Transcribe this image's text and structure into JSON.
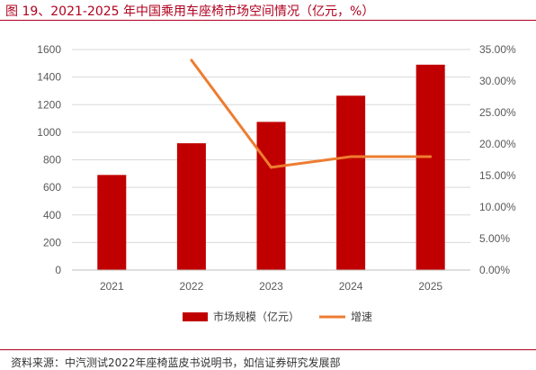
{
  "figure_title": "图 19、2021-2025 年中国乘用车座椅市场空间情况（亿元，%）",
  "source_text": "资料来源：中汽测试2022年座椅蓝皮书说明书，如信证券研究发展部",
  "colors": {
    "bar": "#c00000",
    "line": "#ed7d31",
    "title": "#b0001e"
  },
  "chart_data": {
    "type": "bar",
    "categories": [
      "2021",
      "2022",
      "2023",
      "2024",
      "2025"
    ],
    "series": [
      {
        "name": "市场规模（亿元）",
        "type": "bar",
        "axis": "left",
        "values": [
          690,
          920,
          1075,
          1265,
          1490
        ]
      },
      {
        "name": "增速",
        "type": "line",
        "axis": "right",
        "values": [
          null,
          33.3,
          16.3,
          18.0,
          18.0
        ]
      }
    ],
    "y_left": {
      "min": 0,
      "max": 1600,
      "ticks": [
        "0",
        "200",
        "400",
        "600",
        "800",
        "1000",
        "1200",
        "1400",
        "1600"
      ]
    },
    "y_right": {
      "min": 0,
      "max": 35,
      "ticks": [
        "0.00%",
        "5.00%",
        "10.00%",
        "15.00%",
        "20.00%",
        "25.00%",
        "30.00%",
        "35.00%"
      ]
    },
    "grid": true,
    "legend": "bottom"
  }
}
